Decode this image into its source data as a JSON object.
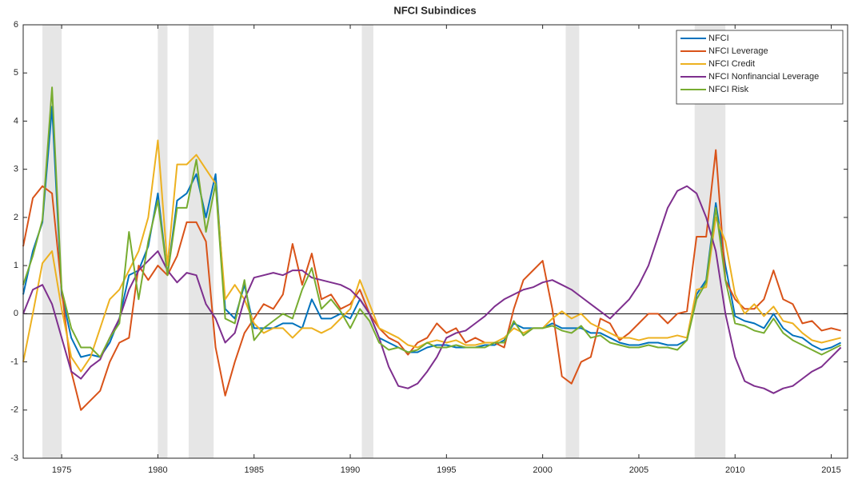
{
  "chart_data": {
    "type": "line",
    "title": "NFCI Subindices",
    "x": [
      1973,
      1973.5,
      1974,
      1974.5,
      1975,
      1975.5,
      1976,
      1976.5,
      1977,
      1977.5,
      1978,
      1978.5,
      1979,
      1979.5,
      1980,
      1980.5,
      1981,
      1981.5,
      1982,
      1982.5,
      1983,
      1983.5,
      1984,
      1984.5,
      1985,
      1985.5,
      1986,
      1986.5,
      1987,
      1987.5,
      1988,
      1988.5,
      1989,
      1989.5,
      1990,
      1990.5,
      1991,
      1991.5,
      1992,
      1992.5,
      1993,
      1993.5,
      1994,
      1994.5,
      1995,
      1995.5,
      1996,
      1996.5,
      1997,
      1997.5,
      1998,
      1998.5,
      1999,
      1999.5,
      2000,
      2000.5,
      2001,
      2001.5,
      2002,
      2002.5,
      2003,
      2003.5,
      2004,
      2004.5,
      2005,
      2005.5,
      2006,
      2006.5,
      2007,
      2007.5,
      2008,
      2008.5,
      2009,
      2009.5,
      2010,
      2010.5,
      2011,
      2011.5,
      2012,
      2012.5,
      2013,
      2013.5,
      2014,
      2014.5,
      2015,
      2015.5
    ],
    "series": [
      {
        "name": "NFCI",
        "color": "#0072BD",
        "values": [
          0.4,
          1.3,
          1.9,
          4.3,
          0.4,
          -0.5,
          -0.9,
          -0.85,
          -0.9,
          -0.6,
          -0.1,
          0.8,
          0.9,
          1.4,
          2.5,
          0.8,
          2.35,
          2.5,
          2.9,
          2.0,
          2.9,
          0.1,
          -0.1,
          0.6,
          -0.3,
          -0.3,
          -0.3,
          -0.2,
          -0.2,
          -0.3,
          0.3,
          -0.1,
          -0.1,
          0.0,
          -0.1,
          0.3,
          0.0,
          -0.5,
          -0.6,
          -0.7,
          -0.8,
          -0.8,
          -0.7,
          -0.65,
          -0.65,
          -0.7,
          -0.7,
          -0.7,
          -0.65,
          -0.65,
          -0.55,
          -0.2,
          -0.3,
          -0.3,
          -0.3,
          -0.2,
          -0.3,
          -0.3,
          -0.3,
          -0.4,
          -0.4,
          -0.5,
          -0.6,
          -0.65,
          -0.65,
          -0.6,
          -0.6,
          -0.65,
          -0.65,
          -0.55,
          0.4,
          0.7,
          2.3,
          1.0,
          -0.05,
          -0.15,
          -0.2,
          -0.3,
          0.0,
          -0.3,
          -0.45,
          -0.5,
          -0.65,
          -0.75,
          -0.7,
          -0.6
        ]
      },
      {
        "name": "NFCI Leverage",
        "color": "#D95319",
        "values": [
          1.4,
          2.4,
          2.65,
          2.5,
          0.5,
          -1.2,
          -2.0,
          -1.8,
          -1.6,
          -1.0,
          -0.6,
          -0.5,
          1.0,
          0.7,
          1.0,
          0.8,
          1.2,
          1.9,
          1.9,
          1.5,
          -0.7,
          -1.7,
          -1.0,
          -0.4,
          -0.1,
          0.2,
          0.1,
          0.4,
          1.45,
          0.6,
          1.25,
          0.3,
          0.4,
          0.1,
          0.2,
          0.5,
          0.0,
          -0.3,
          -0.5,
          -0.6,
          -0.85,
          -0.6,
          -0.5,
          -0.2,
          -0.4,
          -0.3,
          -0.6,
          -0.5,
          -0.6,
          -0.6,
          -0.7,
          0.1,
          0.7,
          0.9,
          1.1,
          0.1,
          -1.3,
          -1.45,
          -1.0,
          -0.9,
          -0.1,
          -0.2,
          -0.55,
          -0.4,
          -0.2,
          0.0,
          0.0,
          -0.2,
          0.0,
          0.05,
          1.6,
          1.6,
          3.4,
          0.7,
          0.3,
          0.1,
          0.1,
          0.3,
          0.9,
          0.3,
          0.2,
          -0.2,
          -0.15,
          -0.35,
          -0.3,
          -0.35
        ]
      },
      {
        "name": "NFCI Credit",
        "color": "#EDB120",
        "values": [
          -1.0,
          0.0,
          1.05,
          1.3,
          0.1,
          -0.9,
          -1.2,
          -0.9,
          -0.3,
          0.3,
          0.5,
          0.9,
          1.3,
          2.0,
          3.6,
          1.0,
          3.1,
          3.1,
          3.3,
          3.0,
          2.7,
          0.3,
          0.6,
          0.3,
          -0.2,
          -0.4,
          -0.3,
          -0.3,
          -0.5,
          -0.3,
          -0.3,
          -0.4,
          -0.3,
          -0.1,
          0.1,
          0.7,
          0.2,
          -0.3,
          -0.4,
          -0.5,
          -0.65,
          -0.7,
          -0.6,
          -0.55,
          -0.6,
          -0.55,
          -0.65,
          -0.65,
          -0.6,
          -0.6,
          -0.5,
          -0.3,
          -0.4,
          -0.3,
          -0.3,
          -0.1,
          0.05,
          -0.1,
          0.0,
          -0.2,
          -0.3,
          -0.4,
          -0.5,
          -0.5,
          -0.55,
          -0.5,
          -0.5,
          -0.5,
          -0.45,
          -0.5,
          0.5,
          0.55,
          2.0,
          1.5,
          0.4,
          0.0,
          0.2,
          -0.05,
          0.15,
          -0.15,
          -0.2,
          -0.4,
          -0.55,
          -0.6,
          -0.55,
          -0.5
        ]
      },
      {
        "name": "NFCI Nonfinancial Leverage",
        "color": "#7E2F8E",
        "values": [
          0.0,
          0.5,
          0.6,
          0.2,
          -0.5,
          -1.2,
          -1.35,
          -1.1,
          -0.95,
          -0.5,
          -0.1,
          0.5,
          0.9,
          1.1,
          1.3,
          0.9,
          0.65,
          0.85,
          0.8,
          0.2,
          -0.1,
          -0.6,
          -0.4,
          0.3,
          0.75,
          0.8,
          0.85,
          0.8,
          0.9,
          0.9,
          0.75,
          0.7,
          0.65,
          0.6,
          0.5,
          0.3,
          0.0,
          -0.5,
          -1.1,
          -1.5,
          -1.55,
          -1.45,
          -1.2,
          -0.9,
          -0.5,
          -0.4,
          -0.35,
          -0.2,
          -0.05,
          0.15,
          0.3,
          0.4,
          0.5,
          0.55,
          0.65,
          0.7,
          0.6,
          0.5,
          0.35,
          0.2,
          0.05,
          -0.1,
          0.1,
          0.3,
          0.6,
          1.0,
          1.6,
          2.2,
          2.55,
          2.65,
          2.5,
          2.0,
          1.3,
          0.0,
          -0.9,
          -1.4,
          -1.5,
          -1.55,
          -1.65,
          -1.55,
          -1.5,
          -1.35,
          -1.2,
          -1.1,
          -0.9,
          -0.7
        ]
      },
      {
        "name": "NFCI Risk",
        "color": "#77AC30",
        "values": [
          0.6,
          1.2,
          1.95,
          4.7,
          0.5,
          -0.3,
          -0.7,
          -0.7,
          -0.9,
          -0.5,
          -0.2,
          1.7,
          0.3,
          1.5,
          2.35,
          0.8,
          2.2,
          2.2,
          3.2,
          1.7,
          2.7,
          -0.1,
          -0.2,
          0.7,
          -0.55,
          -0.3,
          -0.15,
          0.0,
          -0.1,
          0.5,
          0.95,
          0.1,
          0.3,
          0.05,
          -0.3,
          0.1,
          -0.15,
          -0.6,
          -0.75,
          -0.7,
          -0.8,
          -0.75,
          -0.6,
          -0.7,
          -0.7,
          -0.65,
          -0.7,
          -0.7,
          -0.7,
          -0.6,
          -0.6,
          -0.15,
          -0.45,
          -0.3,
          -0.3,
          -0.25,
          -0.35,
          -0.4,
          -0.25,
          -0.5,
          -0.45,
          -0.6,
          -0.65,
          -0.7,
          -0.7,
          -0.65,
          -0.7,
          -0.7,
          -0.75,
          -0.55,
          0.3,
          0.65,
          2.2,
          0.7,
          -0.2,
          -0.25,
          -0.35,
          -0.4,
          -0.1,
          -0.4,
          -0.55,
          -0.65,
          -0.75,
          -0.85,
          -0.75,
          -0.65
        ]
      }
    ],
    "recessions": [
      [
        1974,
        1975
      ],
      [
        1980,
        1980.5
      ],
      [
        1981.6,
        1982.9
      ],
      [
        1990.6,
        1991.2
      ],
      [
        2001.2,
        2001.9
      ],
      [
        2007.9,
        2009.5
      ]
    ],
    "recession_color": "#e6e6e6",
    "xlim": [
      1973,
      2015.85
    ],
    "ylim": [
      -3,
      6
    ],
    "xticks": [
      1975,
      1980,
      1985,
      1990,
      1995,
      2000,
      2005,
      2010,
      2015
    ],
    "yticks": [
      -3,
      -2,
      -1,
      0,
      1,
      2,
      3,
      4,
      5,
      6
    ],
    "zero_line": true,
    "grid": false,
    "legend": "upper right"
  }
}
